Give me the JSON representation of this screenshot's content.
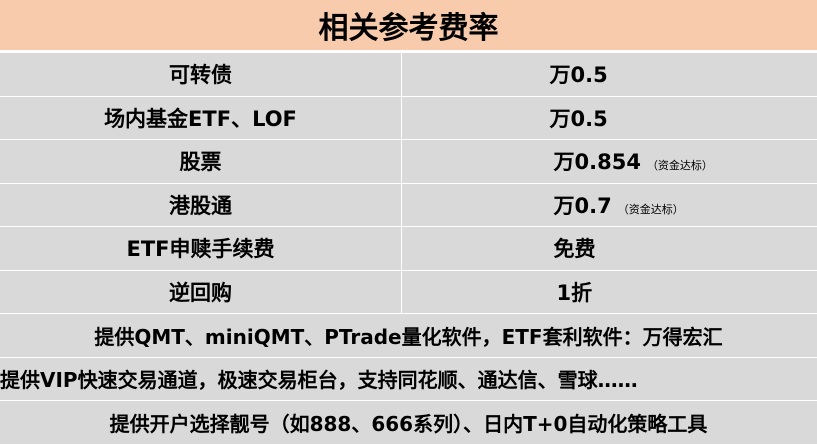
{
  "title": "相关参考费率",
  "rows": [
    {
      "label": "可转债",
      "value": "万0.5",
      "note": ""
    },
    {
      "label": "场内基金ETF、LOF",
      "value": "万0.5",
      "note": ""
    },
    {
      "label": "股票",
      "value": "万0.854",
      "note": "（资金达标）"
    },
    {
      "label": "港股通",
      "value": "万0.7",
      "note": "（资金达标）"
    },
    {
      "label": "ETF申赎手续费",
      "value": "免费",
      "note": ""
    },
    {
      "label": "逆回购",
      "value": "1折",
      "note": ""
    }
  ],
  "notes": [
    "提供QMT、miniQMT、PTrade量化软件，ETF套利软件：万得宏汇",
    "提供VIP快速交易通道，极速交易柜台，支持同花顺、通达信、雪球……",
    "提供开户选择靓号（如888、666系列）、日内T+0自动化策略工具"
  ],
  "colors": {
    "header_bg": "#f8cbad",
    "row_bg": "#d9d9d9"
  }
}
